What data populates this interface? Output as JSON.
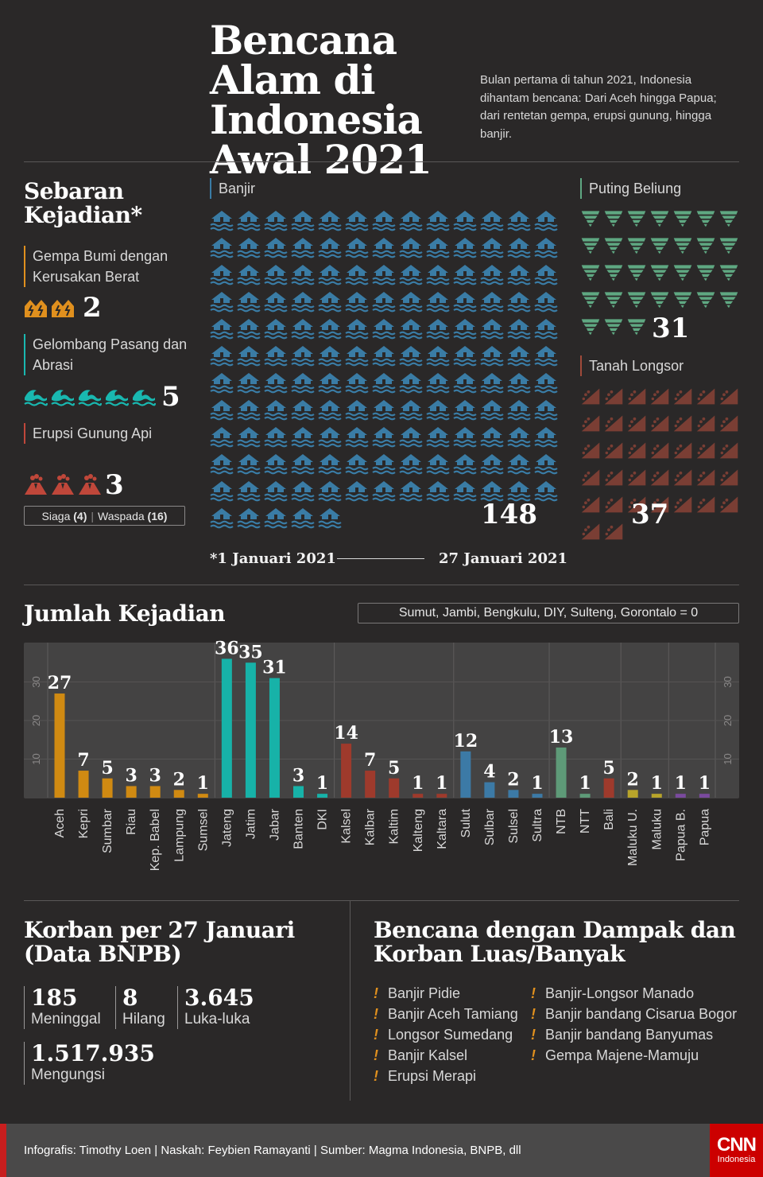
{
  "title": "Bencana Alam di Indonesia Awal 2021",
  "subtitle": "Bulan pertama di tahun 2021, Indonesia dihantam bencana: Dari Aceh hingga Papua; dari rentetan gempa, erupsi gunung, hingga banjir.",
  "spread": {
    "heading": "Sebaran Kejadian*",
    "gempa": {
      "label": "Gempa Bumi dengan Kerusakan Berat",
      "count": 2,
      "color": "#e0901e"
    },
    "gelombang": {
      "label": "Gelombang Pasang dan Abrasi",
      "count": 5,
      "color": "#19b8b0"
    },
    "erupsi": {
      "label": "Erupsi Gunung Api",
      "count": 3,
      "color": "#c0473a"
    },
    "erupsi_legend": {
      "siaga_label": "Siaga",
      "siaga_count": "(4)",
      "waspada_label": "Waspada",
      "waspada_count": "(16)"
    },
    "banjir": {
      "label": "Banjir",
      "count": 148,
      "color": "#3a7ca5"
    },
    "puting": {
      "label": "Puting Beliung",
      "count": 31,
      "color": "#5fa882"
    },
    "longsor": {
      "label": "Tanah Longsor",
      "count": 37,
      "color": "#7a3e34"
    },
    "date_start": "*1 Januari 2021",
    "date_end": "27 Januari 2021"
  },
  "jumlah": {
    "heading": "Jumlah Kejadian",
    "zero_note": "Sumut, Jambi, Bengkulu, DIY, Sulteng, Gorontalo = 0"
  },
  "chart_data": {
    "type": "bar",
    "title": "Jumlah Kejadian",
    "categories": [
      "Aceh",
      "Kepri",
      "Sumbar",
      "Riau",
      "Kep. Babel",
      "Lampung",
      "Sumsel",
      "Jateng",
      "Jatim",
      "Jabar",
      "Banten",
      "DKI",
      "Kalsel",
      "Kalbar",
      "Kaltim",
      "Kalteng",
      "Kaltara",
      "Sulut",
      "Sulbar",
      "Sulsel",
      "Sultra",
      "NTB",
      "NTT",
      "Bali",
      "Maluku U.",
      "Maluku",
      "Papua B.",
      "Papua"
    ],
    "values": [
      27,
      7,
      5,
      3,
      3,
      2,
      1,
      36,
      35,
      31,
      3,
      1,
      14,
      7,
      5,
      1,
      1,
      12,
      4,
      2,
      1,
      13,
      1,
      5,
      2,
      1,
      1,
      1
    ],
    "colors": [
      "#d08a12",
      "#d08a12",
      "#d08a12",
      "#d08a12",
      "#d08a12",
      "#d08a12",
      "#d08a12",
      "#17b2a8",
      "#17b2a8",
      "#17b2a8",
      "#17b2a8",
      "#17b2a8",
      "#9e3a2c",
      "#9e3a2c",
      "#9e3a2c",
      "#9e3a2c",
      "#9e3a2c",
      "#3c7aa6",
      "#3c7aa6",
      "#3c7aa6",
      "#3c7aa6",
      "#5e9a78",
      "#5e9a78",
      "#9e3a2c",
      "#b8a42a",
      "#b8a42a",
      "#7a4a9e",
      "#7a4a9e"
    ],
    "region_groups": [
      [
        0,
        6
      ],
      [
        7,
        11
      ],
      [
        12,
        16
      ],
      [
        17,
        20
      ],
      [
        21,
        23
      ],
      [
        24,
        25
      ],
      [
        26,
        27
      ]
    ],
    "ylim": [
      0,
      40
    ],
    "yticks": [
      10,
      20,
      30
    ],
    "grid": true
  },
  "korban": {
    "heading": "Korban per 27 Januari (Data BNPB)",
    "stats": [
      {
        "value": "185",
        "label": "Meninggal"
      },
      {
        "value": "8",
        "label": "Hilang"
      },
      {
        "value": "3.645",
        "label": "Luka-luka"
      },
      {
        "value": "1.517.935",
        "label": "Mengungsi"
      }
    ]
  },
  "dampak": {
    "heading": "Bencana dengan Dampak dan Korban Luas/Banyak",
    "bang": "!",
    "left": [
      "Banjir Pidie",
      "Banjir Aceh Tamiang",
      "Longsor Sumedang",
      "Banjir Kalsel",
      "Erupsi Merapi"
    ],
    "right": [
      "Banjir-Longsor Manado",
      "Banjir bandang Cisarua Bogor",
      "Banjir bandang Banyumas",
      "Gempa Majene-Mamuju"
    ]
  },
  "footer": {
    "credits": "Infografis: Timothy Loen | Naskah: Feybien Ramayanti | Sumber: Magma Indonesia, BNPB, dll",
    "logo_top": "CNN",
    "logo_bottom": "Indonesia"
  }
}
